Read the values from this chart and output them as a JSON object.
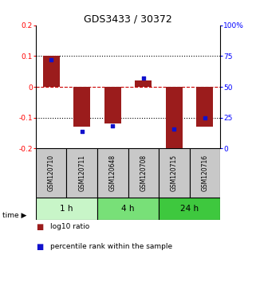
{
  "title": "GDS3433 / 30372",
  "samples": [
    "GSM120710",
    "GSM120711",
    "GSM120648",
    "GSM120708",
    "GSM120715",
    "GSM120716"
  ],
  "log10_ratio": [
    0.1,
    -0.13,
    -0.12,
    0.02,
    -0.2,
    -0.13
  ],
  "percentile_rank": [
    72,
    14,
    18,
    57,
    16,
    25
  ],
  "time_groups": [
    {
      "label": "1 h",
      "start": 0,
      "end": 2,
      "color": "#c8f5c8"
    },
    {
      "label": "4 h",
      "start": 2,
      "end": 4,
      "color": "#78e078"
    },
    {
      "label": "24 h",
      "start": 4,
      "end": 6,
      "color": "#3ec83e"
    }
  ],
  "ylim_left": [
    -0.2,
    0.2
  ],
  "ylim_right": [
    0,
    100
  ],
  "yticks_left": [
    -0.2,
    -0.1,
    0.0,
    0.1,
    0.2
  ],
  "yticks_right": [
    0,
    25,
    50,
    75,
    100
  ],
  "ytick_labels_left": [
    "-0.2",
    "-0.1",
    "0",
    "0.1",
    "0.2"
  ],
  "ytick_labels_right": [
    "0",
    "25",
    "50",
    "75",
    "100%"
  ],
  "bar_color": "#9B1C1C",
  "dot_color": "#1111CC",
  "zero_line_color": "#CC0000",
  "grid_color": "#000000",
  "sample_box_color": "#C8C8C8",
  "background_color": "#ffffff",
  "legend_items": [
    "log10 ratio",
    "percentile rank within the sample"
  ]
}
